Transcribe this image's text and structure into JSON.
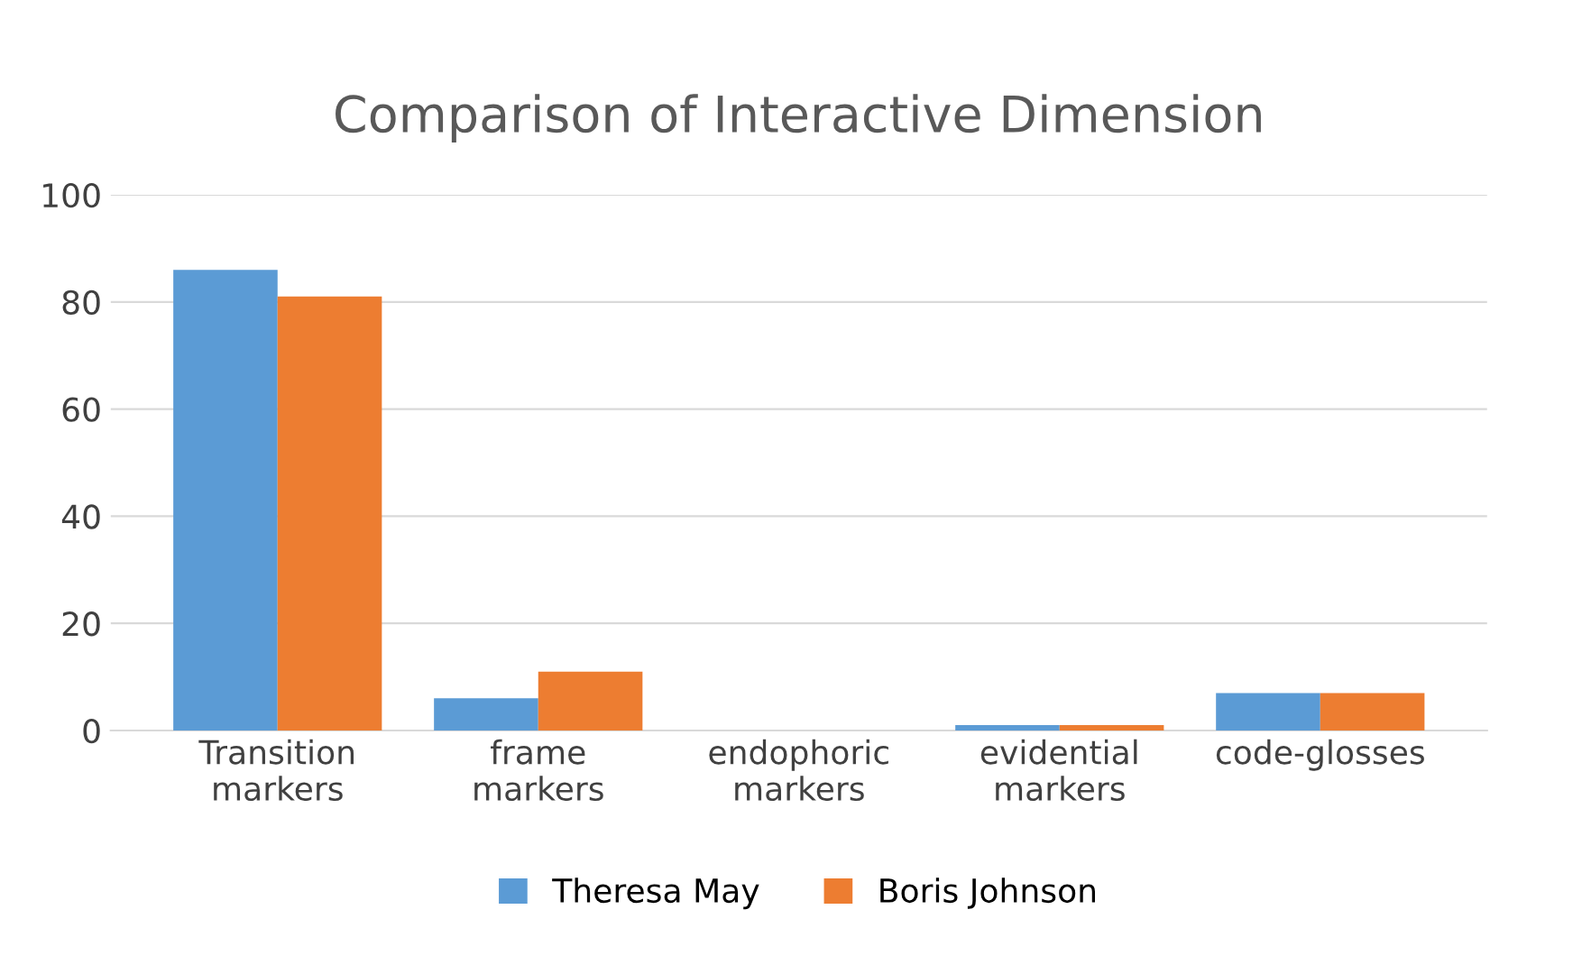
{
  "chart_data": {
    "type": "bar",
    "title": "Comparison of Interactive Dimension",
    "categories": [
      "Transition\nmarkers",
      "frame\nmarkers",
      "endophoric\nmarkers",
      "evidential\nmarkers",
      "code-glosses"
    ],
    "series": [
      {
        "name": "Theresa May",
        "color": "#5b9bd5",
        "values": [
          86,
          6,
          0,
          1,
          7
        ]
      },
      {
        "name": "Boris Johnson",
        "color": "#ed7d31",
        "values": [
          81,
          11,
          0,
          1,
          7
        ]
      }
    ],
    "ylim": [
      0,
      100
    ],
    "yticks": [
      0,
      20,
      40,
      60,
      80,
      100
    ],
    "grid": "y",
    "legend": "bottom"
  }
}
